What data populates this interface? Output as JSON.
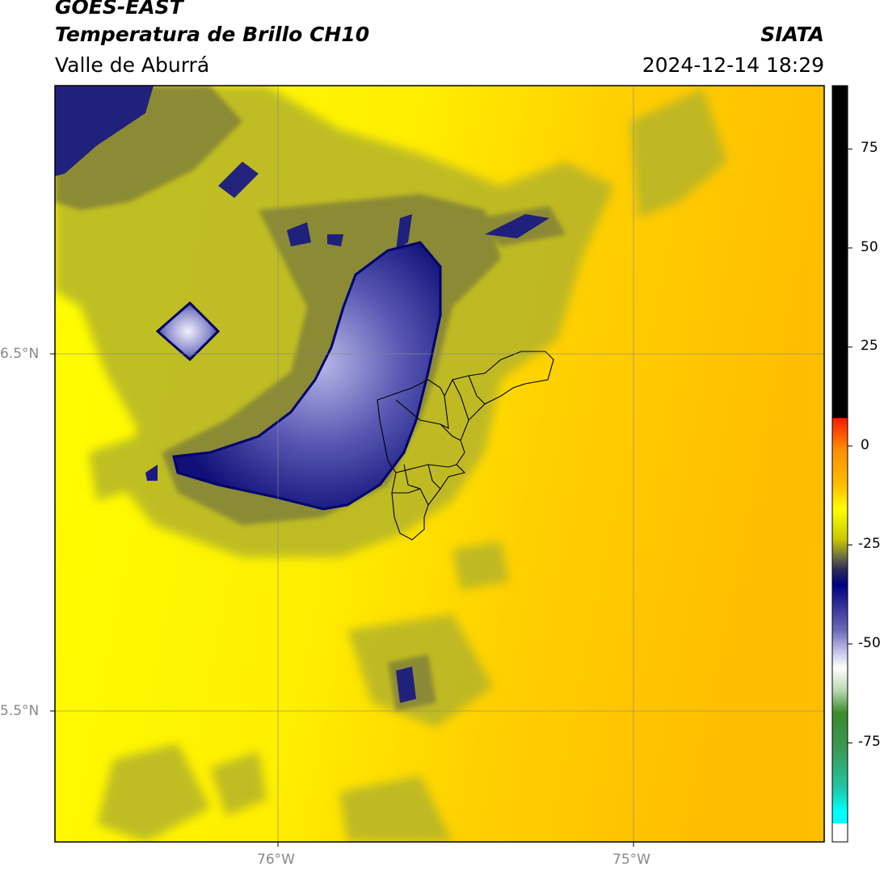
{
  "header": {
    "satellite": "GOES-EAST",
    "product": "Temperatura de Brillo CH10",
    "region": "Valle de Aburrá",
    "agency": "SIATA",
    "datetime": "2024-12-14 18:29"
  },
  "map": {
    "lat_labels": [
      "6.5°N",
      "5.5°N"
    ],
    "lon_labels": [
      "76°W",
      "75°W"
    ],
    "lat_values": [
      6.5,
      5.5
    ],
    "lon_values": [
      -76,
      -75
    ],
    "graticule": true,
    "overlay": "municipal boundaries of Valle de Aburrá"
  },
  "colorbar": {
    "ticks": [
      "75",
      "50",
      "25",
      "0",
      "-25",
      "-50",
      "-75"
    ],
    "tick_values": [
      75,
      50,
      25,
      0,
      -25,
      -50,
      -75
    ],
    "range": [
      -100,
      91
    ],
    "colors": {
      "warm_top": "#000000",
      "red": "#ff1a00",
      "orange": "#ff8c00",
      "amber": "#ffc000",
      "yellow": "#ffff00",
      "olive": "#9a9a2a",
      "navy": "#000080",
      "lavender": "#c8c8ec",
      "white": "#ffffff",
      "green": "#3a8a2a",
      "teal": "#20c8a8",
      "cyan": "#00ffff"
    }
  }
}
